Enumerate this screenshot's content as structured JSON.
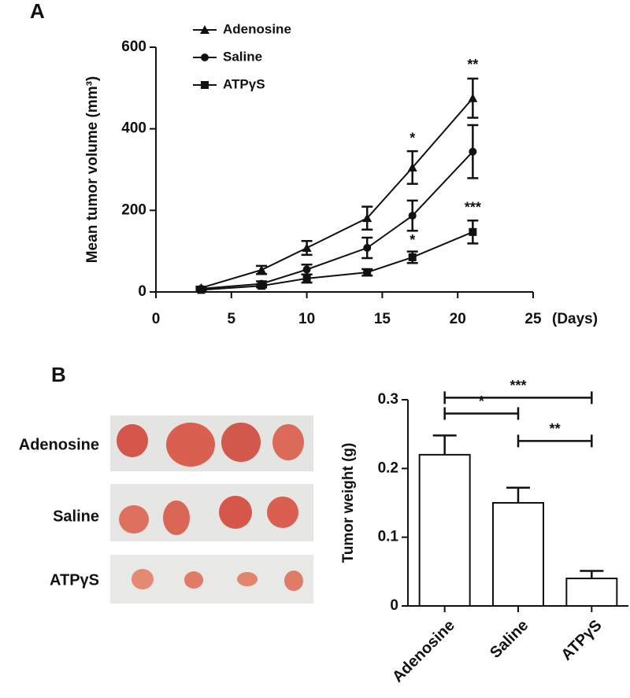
{
  "panel_labels": [
    "A",
    "B"
  ],
  "photo_rows": [
    "Adenosine",
    "Saline",
    "ATPγS"
  ],
  "chart_data": [
    {
      "type": "line",
      "x_label": "(Days)",
      "y_label": "Mean tumor volume (mm³)",
      "x": [
        3,
        7,
        10,
        14,
        17,
        21
      ],
      "xlim": [
        0,
        25
      ],
      "xticks": [
        0,
        5,
        10,
        15,
        20,
        25
      ],
      "ylim": [
        0,
        600
      ],
      "yticks": [
        0,
        200,
        400,
        600
      ],
      "series": [
        {
          "name": "Adenosine",
          "color": "#111111",
          "marker": "triangle",
          "values": [
            10,
            54,
            108,
            181,
            305,
            475
          ],
          "errors": [
            3,
            10,
            17,
            28,
            40,
            48
          ]
        },
        {
          "name": "Saline",
          "color": "#111111",
          "marker": "circle",
          "values": [
            8,
            20,
            55,
            108,
            187,
            344
          ],
          "errors": [
            3,
            6,
            12,
            25,
            37,
            65
          ]
        },
        {
          "name": "ATPγS",
          "color": "#111111",
          "marker": "square",
          "values": [
            5,
            15,
            33,
            48,
            85,
            147
          ],
          "errors": [
            2,
            4,
            10,
            8,
            14,
            28
          ]
        }
      ],
      "annotations": [
        {
          "text": "*",
          "x": 17,
          "y": 375
        },
        {
          "text": "**",
          "x": 21,
          "y": 555
        },
        {
          "text": "*",
          "x": 17,
          "y": 125
        },
        {
          "text": "***",
          "x": 21,
          "y": 205
        }
      ]
    },
    {
      "type": "bar",
      "y_label": "Tumor weight (g)",
      "categories": [
        "Adenosine",
        "Saline",
        "ATPγS"
      ],
      "values": [
        0.22,
        0.15,
        0.04
      ],
      "errors": [
        0.028,
        0.022,
        0.011
      ],
      "color": "#ffffff",
      "ylim": [
        0,
        0.3
      ],
      "yticks": [
        0,
        0.1,
        0.2,
        0.3
      ],
      "brackets": [
        {
          "label": "***",
          "from": 0,
          "to": 2,
          "y": 0.303
        },
        {
          "label": "*",
          "from": 0,
          "to": 1,
          "y": 0.28
        },
        {
          "label": "**",
          "from": 1,
          "to": 2,
          "y": 0.24
        }
      ]
    }
  ]
}
